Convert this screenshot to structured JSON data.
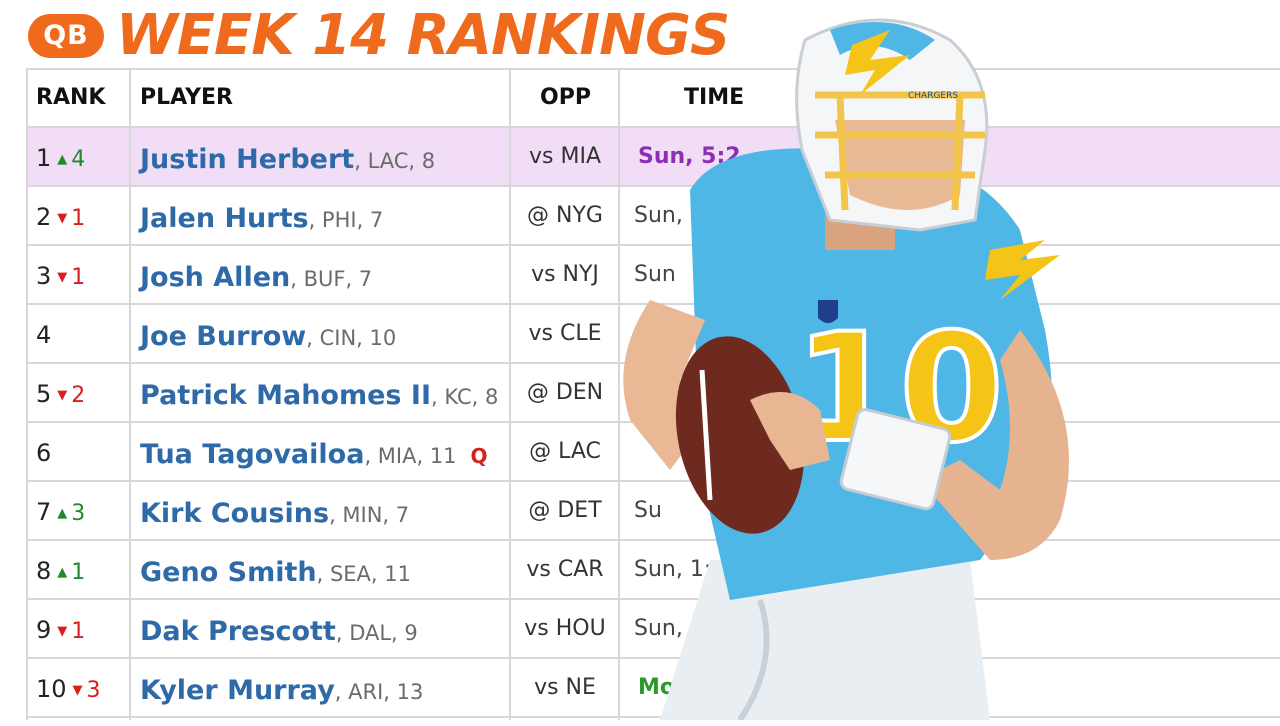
{
  "header": {
    "badge": "QB",
    "title": "WEEK 14 RANKINGS"
  },
  "columns": {
    "rank": "RANK",
    "player": "PLAYER",
    "opp": "OPP",
    "time": "TIME"
  },
  "colors": {
    "accent": "#ef6a1c",
    "highlight_row": "#f1ddf6",
    "player_name": "#2f6aa8",
    "up": "#1f8a2c",
    "down": "#d62020",
    "time_purple": "#8c2fb4",
    "time_green": "#2a9a2a",
    "jersey": "#4fb7e6"
  },
  "rows": [
    {
      "rank": "1",
      "dir": "up",
      "delta": "4",
      "name": "Justin Herbert",
      "meta": ", LAC, 8",
      "status": "",
      "opp": "vs MIA",
      "time": "Sun, 5:2",
      "time_style": "purple"
    },
    {
      "rank": "2",
      "dir": "down",
      "delta": "1",
      "name": "Jalen Hurts",
      "meta": ", PHI, 7",
      "status": "",
      "opp": "@ NYG",
      "time": "Sun,",
      "time_style": ""
    },
    {
      "rank": "3",
      "dir": "down",
      "delta": "1",
      "name": "Josh Allen",
      "meta": ", BUF, 7",
      "status": "",
      "opp": "vs NYJ",
      "time": "Sun",
      "time_style": ""
    },
    {
      "rank": "4",
      "dir": "",
      "delta": "",
      "name": "Joe Burrow",
      "meta": ", CIN, 10",
      "status": "",
      "opp": "vs CLE",
      "time": "",
      "time_style": ""
    },
    {
      "rank": "5",
      "dir": "down",
      "delta": "2",
      "name": "Patrick Mahomes II",
      "meta": ", KC, 8",
      "status": "",
      "opp": "@ DEN",
      "time": "",
      "time_style": ""
    },
    {
      "rank": "6",
      "dir": "",
      "delta": "",
      "name": "Tua Tagovailoa",
      "meta": ", MIA, 11",
      "status": "Q",
      "opp": "@ LAC",
      "time": "",
      "time_style": ""
    },
    {
      "rank": "7",
      "dir": "up",
      "delta": "3",
      "name": "Kirk Cousins",
      "meta": ", MIN, 7",
      "status": "",
      "opp": "@ DET",
      "time": "Su",
      "time_style": ""
    },
    {
      "rank": "8",
      "dir": "up",
      "delta": "1",
      "name": "Geno Smith",
      "meta": ", SEA, 11",
      "status": "",
      "opp": "vs CAR",
      "time": "Sun, 1:",
      "time_style": ""
    },
    {
      "rank": "9",
      "dir": "down",
      "delta": "1",
      "name": "Dak Prescott",
      "meta": ", DAL, 9",
      "status": "",
      "opp": "vs HOU",
      "time": "Sun,",
      "time_style": ""
    },
    {
      "rank": "10",
      "dir": "down",
      "delta": "3",
      "name": "Kyler Murray",
      "meta": ", ARI, 13",
      "status": "",
      "opp": "vs NE",
      "time": "Mo",
      "time_style": "green"
    }
  ],
  "photo": {
    "jersey_number": "10",
    "helmet_text": "CHARGERS",
    "icon": "quarterback-player-photo"
  }
}
